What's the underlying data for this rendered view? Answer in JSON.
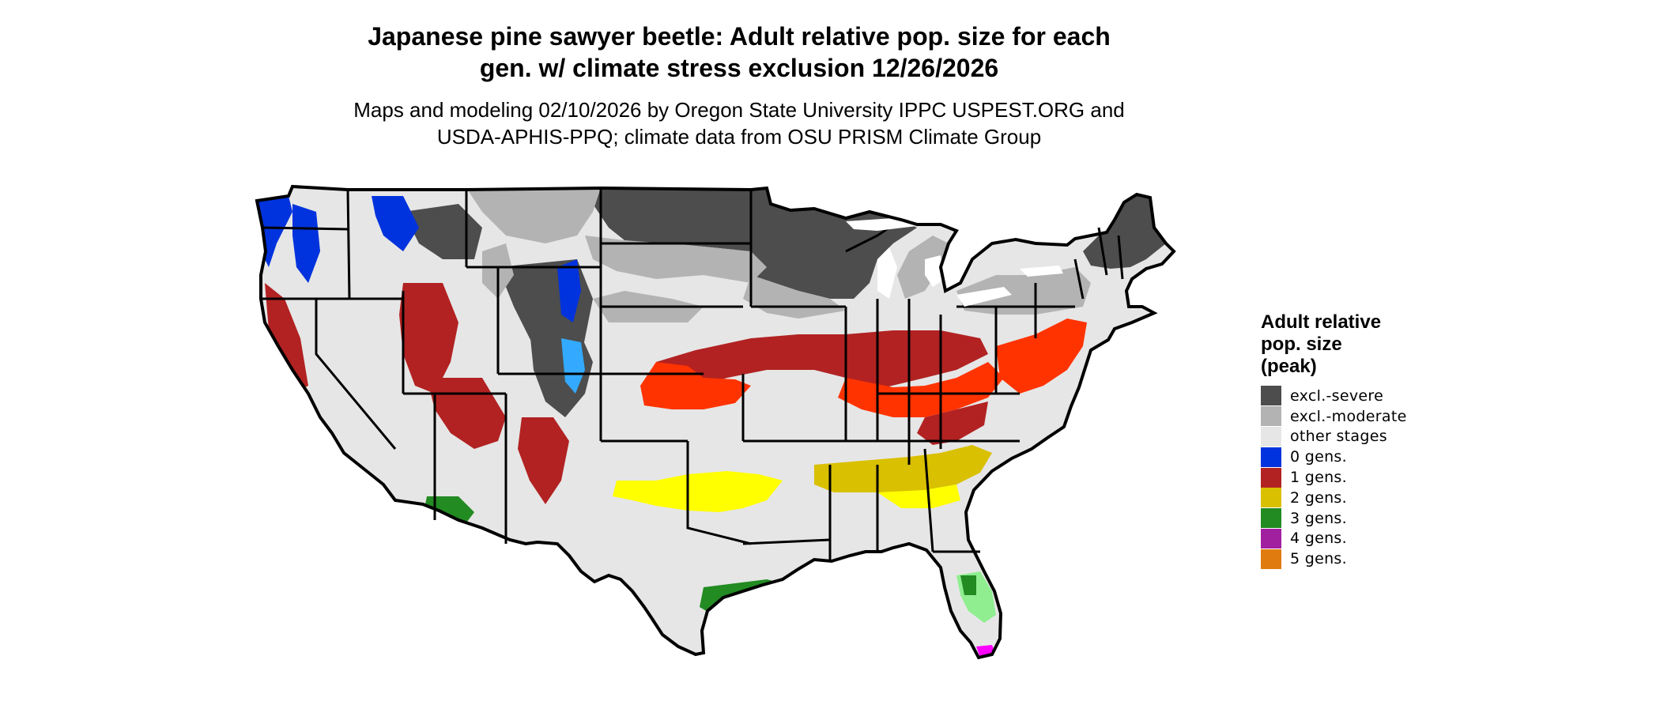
{
  "header": {
    "title_line1": "Japanese pine sawyer beetle: Adult relative pop. size for each",
    "title_line2": "gen. w/ climate stress exclusion 12/26/2026",
    "subtitle_line1": "Maps and modeling 02/10/2026 by Oregon State University IPPC USPEST.ORG and",
    "subtitle_line2": "USDA-APHIS-PPQ; climate data from OSU PRISM Climate Group"
  },
  "legend": {
    "title_line1": "Adult relative",
    "title_line2": "pop. size",
    "title_line3": "(peak)",
    "items": [
      {
        "label": "excl.-severe",
        "color": "#4d4d4d"
      },
      {
        "label": "excl.-moderate",
        "color": "#b3b3b3"
      },
      {
        "label": "other stages",
        "color": "#e6e6e6"
      },
      {
        "label": "0 gens.",
        "color": "#0033dd"
      },
      {
        "label": "1 gens.",
        "color": "#b22222"
      },
      {
        "label": "2 gens.",
        "color": "#d9c000"
      },
      {
        "label": "3 gens.",
        "color": "#228b22"
      },
      {
        "label": "4 gens.",
        "color": "#a020a0"
      },
      {
        "label": "5 gens.",
        "color": "#e07b10"
      }
    ]
  },
  "map_colors": {
    "severe": "#4d4d4d",
    "moderate": "#b3b3b3",
    "other": "#e6e6e6",
    "g0": "#0033dd",
    "g0_light": "#33aaff",
    "g1": "#b22222",
    "g1_bright": "#ff3300",
    "g2": "#d9c000",
    "g2_bright": "#ffff00",
    "g3": "#228b22",
    "g3_light": "#90ee90",
    "g4": "#ff00ff",
    "border": "#000000",
    "water": "#ffffff"
  }
}
